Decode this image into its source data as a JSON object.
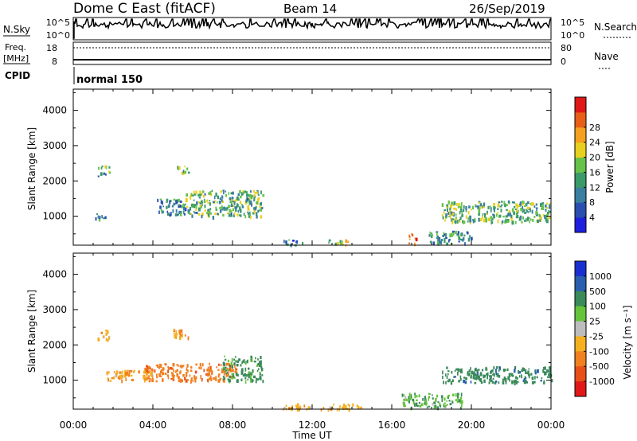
{
  "header": {
    "station": "Dome C East (fitACF)",
    "beam": "Beam 14",
    "date": "26/Sep/2019"
  },
  "top_panels": {
    "nsky_label": "N.Sky",
    "nsky_ticks": [
      "10^5",
      "10^0"
    ],
    "nsearch_label": "N.Search",
    "nsearch_ticks": [
      "10^5",
      "10^0"
    ],
    "freq_label": "Freq.",
    "freq_unit": "[MHz]",
    "freq_ticks": [
      "18",
      "8"
    ],
    "nave_label": "Nave",
    "nave_ticks": [
      "80",
      "0"
    ],
    "cpid_label": "CPID",
    "cpid_value": "normal 150"
  },
  "colors": {
    "power_scale": [
      "#1f1fe0",
      "#2a4fb0",
      "#3b7fa0",
      "#3a9a6a",
      "#66c24a",
      "#e8d020",
      "#f5a020",
      "#e86018",
      "#e01818"
    ],
    "velocity_scale": [
      "#1a2fd0",
      "#2a5fb0",
      "#3a8a5a",
      "#66c43a",
      "#bdbdbd",
      "#f5b020",
      "#f08020",
      "#e85018",
      "#e01818"
    ]
  },
  "chart_data": [
    {
      "type": "heatmap",
      "panel": "power",
      "xlabel": "",
      "ylabel": "Slant Range [km]",
      "x_ticks": [
        "00:00",
        "04:00",
        "08:00",
        "12:00",
        "16:00",
        "20:00",
        "00:00"
      ],
      "xlim_hours": [
        0,
        24
      ],
      "y_ticks": [
        1000,
        2000,
        3000,
        4000
      ],
      "ylim_km": [
        180,
        4600
      ],
      "colorbar_label": "Power [dB]",
      "colorbar_ticks": [
        "4",
        "8",
        "12",
        "16",
        "20",
        "24",
        "28"
      ],
      "colorbar_range": [
        0,
        32
      ],
      "blobs": [
        {
          "t0": 5.6,
          "t1": 9.5,
          "r0": 1000,
          "r1": 1750,
          "value": 14
        },
        {
          "t0": 4.2,
          "t1": 5.6,
          "r0": 1050,
          "r1": 1500,
          "value": 10
        },
        {
          "t0": 1.2,
          "t1": 1.8,
          "r0": 2150,
          "r1": 2450,
          "value": 12
        },
        {
          "t0": 5.2,
          "t1": 5.8,
          "r0": 2250,
          "r1": 2500,
          "value": 16
        },
        {
          "t0": 18.5,
          "t1": 24.0,
          "r0": 850,
          "r1": 1450,
          "value": 14
        },
        {
          "t0": 16.8,
          "t1": 17.2,
          "r0": 250,
          "r1": 550,
          "value": 24
        },
        {
          "t0": 17.8,
          "t1": 20.0,
          "r0": 250,
          "r1": 600,
          "value": 10
        },
        {
          "t0": 10.5,
          "t1": 11.5,
          "r0": 200,
          "r1": 350,
          "value": 8
        },
        {
          "t0": 12.8,
          "t1": 13.8,
          "r0": 200,
          "r1": 350,
          "value": 18
        },
        {
          "t0": 1.1,
          "t1": 1.6,
          "r0": 900,
          "r1": 1100,
          "value": 8
        }
      ]
    },
    {
      "type": "heatmap",
      "panel": "velocity",
      "xlabel": "Time UT",
      "ylabel": "Slant Range [km]",
      "x_ticks": [
        "00:00",
        "04:00",
        "08:00",
        "12:00",
        "16:00",
        "20:00",
        "00:00"
      ],
      "xlim_hours": [
        0,
        24
      ],
      "y_ticks": [
        1000,
        2000,
        3000,
        4000
      ],
      "ylim_km": [
        180,
        4600
      ],
      "colorbar_label": "Velocity [m s⁻¹]",
      "colorbar_ticks": [
        "1000",
        "500",
        "100",
        "25",
        "-25",
        "-100",
        "-500",
        "-1000"
      ],
      "blobs": [
        {
          "t0": 3.5,
          "t1": 8.2,
          "r0": 1000,
          "r1": 1500,
          "value": -300
        },
        {
          "t0": 7.5,
          "t1": 9.5,
          "r0": 1000,
          "r1": 1700,
          "value": 150
        },
        {
          "t0": 1.2,
          "t1": 1.8,
          "r0": 2150,
          "r1": 2450,
          "value": -60
        },
        {
          "t0": 1.5,
          "t1": 4.0,
          "r0": 1000,
          "r1": 1300,
          "value": -80
        },
        {
          "t0": 5.0,
          "t1": 5.8,
          "r0": 2200,
          "r1": 2500,
          "value": -100
        },
        {
          "t0": 18.5,
          "t1": 24.0,
          "r0": 950,
          "r1": 1400,
          "value": 300
        },
        {
          "t0": 16.5,
          "t1": 19.5,
          "r0": 250,
          "r1": 650,
          "value": 80
        },
        {
          "t0": 10.5,
          "t1": 14.5,
          "r0": 200,
          "r1": 350,
          "value": -60
        }
      ]
    }
  ]
}
